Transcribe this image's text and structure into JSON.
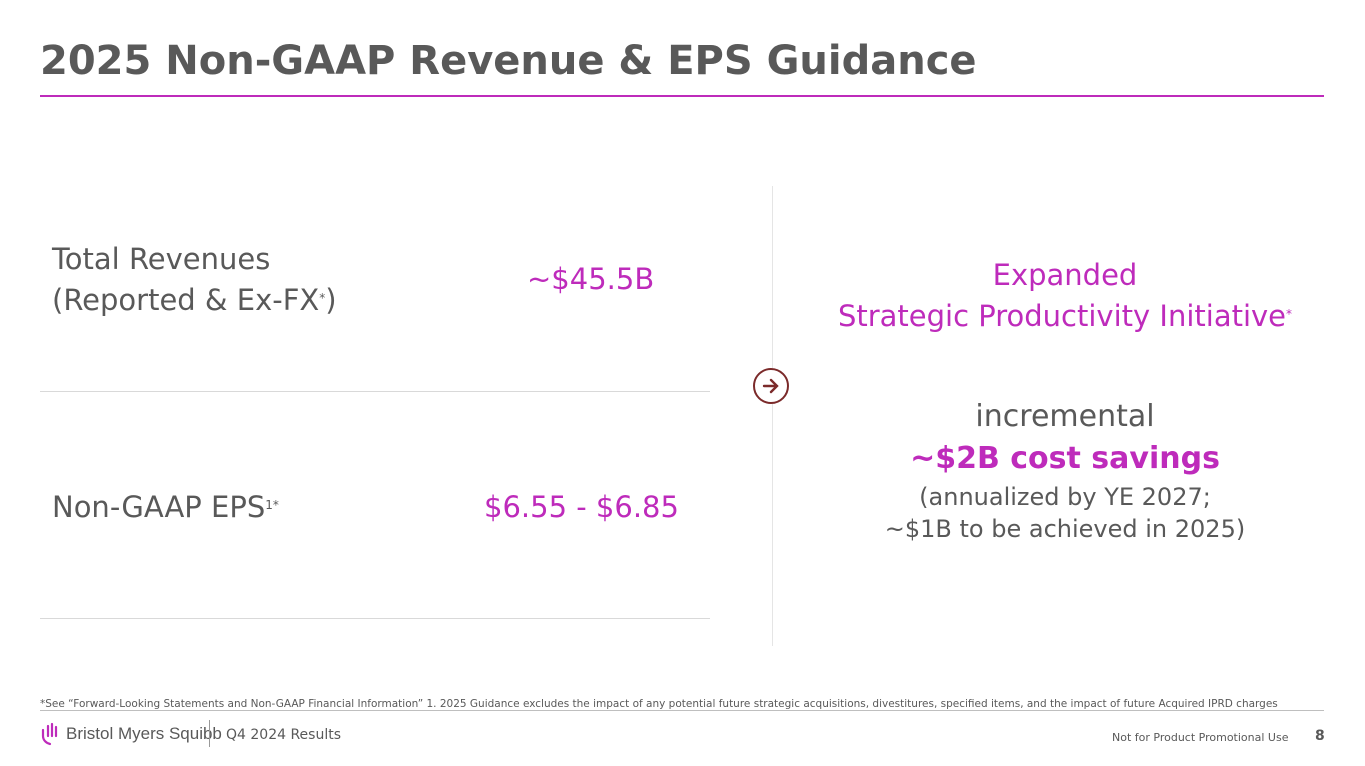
{
  "title": "2025 Non-GAAP Revenue & EPS Guidance",
  "rows": [
    {
      "label_line1": "Total Revenues",
      "label_line2": "(Reported & Ex-FX",
      "label_sup": "*",
      "label_close": ")",
      "value": "~$45.5B"
    },
    {
      "label": "Non-GAAP EPS",
      "label_sup": "1*",
      "value": "$6.55 - $6.85"
    }
  ],
  "right": {
    "heading_line1": "Expanded",
    "heading_line2": "Strategic Productivity Initiative",
    "heading_sup": "*",
    "line1": "incremental",
    "line2": "~$2B cost savings",
    "line3": "(annualized by YE 2027;",
    "line4": "~$1B to be achieved in 2025)"
  },
  "arrow_icon": "arrow-right-circle-icon",
  "footer": {
    "footnote": "*See “Forward-Looking Statements and Non-GAAP Financial Information” 1. 2025 Guidance excludes the impact of any potential future strategic acquisitions, divestitures, specified items, and the impact of future Acquired IPRD charges",
    "logo_text": "Bristol Myers Squibb",
    "results": "Q4 2024 Results",
    "promo": "Not for Product Promotional Use",
    "page": "8"
  },
  "colors": {
    "accent": "#be2bbb",
    "text": "#595959",
    "arrow": "#7b2a2a"
  }
}
